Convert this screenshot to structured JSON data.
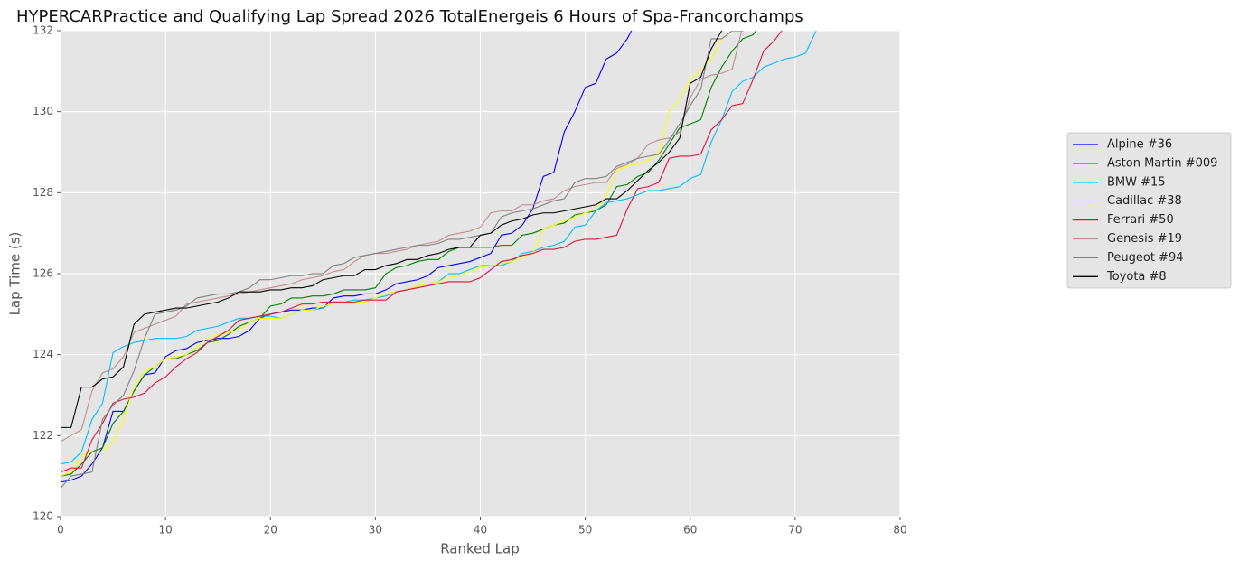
{
  "chart_data": {
    "type": "line",
    "title": "HYPERCARPractice and Qualifying Lap Spread 2026 TotalEnergeis 6 Hours of Spa-Francorchamps",
    "x_label": "Ranked Lap",
    "y_label": "Lap Time (s)",
    "xlim": [
      0,
      80
    ],
    "ylim": [
      120,
      132
    ],
    "xticks": [
      0,
      10,
      20,
      30,
      40,
      50,
      60,
      70,
      80
    ],
    "yticks": [
      120,
      122,
      124,
      126,
      128,
      130,
      132
    ],
    "grid": true,
    "x": [
      0,
      1,
      2,
      3,
      4,
      5,
      6,
      7,
      8,
      9,
      10,
      11,
      12,
      13,
      14,
      15,
      16,
      17,
      18,
      19,
      20,
      21,
      22,
      23,
      24,
      25,
      26,
      27,
      28,
      29,
      30,
      31,
      32,
      33,
      34,
      35,
      36,
      37,
      38,
      39,
      40,
      41,
      42,
      43,
      44,
      45,
      46,
      47,
      48,
      49,
      50,
      51,
      52,
      53,
      54,
      55,
      56,
      57,
      58,
      59,
      60,
      61,
      62,
      63,
      64,
      65,
      66,
      67,
      68,
      69,
      70,
      71,
      72,
      73
    ],
    "series": [
      {
        "name": "Alpine #36",
        "color": "#0000ff",
        "values": [
          120.85,
          120.9,
          121.0,
          121.3,
          121.7,
          122.6,
          122.6,
          123.1,
          123.5,
          123.55,
          123.95,
          124.1,
          124.15,
          124.3,
          124.35,
          124.4,
          124.4,
          124.45,
          124.6,
          124.9,
          125.0,
          125.05,
          125.1,
          125.1,
          125.15,
          125.15,
          125.4,
          125.45,
          125.45,
          125.5,
          125.5,
          125.6,
          125.75,
          125.8,
          125.85,
          125.95,
          126.15,
          126.2,
          126.25,
          126.3,
          126.4,
          126.5,
          126.95,
          127.0,
          127.2,
          127.6,
          128.4,
          128.5,
          129.5,
          130.0,
          130.6,
          130.7,
          131.3,
          131.45,
          131.8,
          132.3,
          null,
          null,
          null,
          null,
          null,
          null,
          null,
          null,
          null,
          null,
          null,
          null,
          null,
          null,
          null,
          null,
          null,
          null
        ]
      },
      {
        "name": "Aston Martin #009",
        "color": "#008000",
        "values": [
          121.0,
          121.05,
          121.3,
          121.6,
          121.7,
          122.3,
          122.6,
          123.1,
          123.5,
          123.7,
          123.9,
          123.9,
          124.0,
          124.1,
          124.3,
          124.35,
          124.5,
          124.7,
          124.8,
          124.9,
          125.2,
          125.25,
          125.4,
          125.4,
          125.45,
          125.45,
          125.5,
          125.6,
          125.6,
          125.6,
          125.65,
          126.0,
          126.15,
          126.2,
          126.3,
          126.35,
          126.35,
          126.55,
          126.65,
          126.65,
          126.65,
          126.65,
          126.7,
          126.7,
          126.95,
          127.0,
          127.1,
          127.2,
          127.25,
          127.45,
          127.5,
          127.55,
          127.7,
          128.15,
          128.2,
          128.4,
          128.5,
          128.8,
          129.2,
          129.6,
          129.7,
          129.8,
          130.6,
          131.1,
          131.5,
          131.8,
          131.9,
          132.3,
          null,
          null,
          null,
          null,
          null,
          null
        ]
      },
      {
        "name": "BMW #15",
        "color": "#00bfff",
        "values": [
          121.3,
          121.35,
          121.6,
          122.4,
          122.8,
          124.05,
          124.2,
          124.3,
          124.35,
          124.4,
          124.4,
          124.4,
          124.45,
          124.6,
          124.65,
          124.7,
          124.8,
          124.9,
          124.9,
          124.95,
          124.95,
          124.9,
          125.0,
          125.1,
          125.1,
          125.15,
          125.3,
          125.3,
          125.35,
          125.35,
          125.4,
          125.45,
          125.55,
          125.6,
          125.7,
          125.75,
          125.8,
          126.0,
          126.0,
          126.1,
          126.2,
          126.2,
          126.2,
          126.3,
          126.5,
          126.55,
          126.65,
          126.7,
          126.8,
          127.15,
          127.2,
          127.55,
          127.75,
          127.8,
          127.85,
          127.95,
          128.05,
          128.05,
          128.1,
          128.15,
          128.35,
          128.45,
          129.25,
          129.8,
          130.5,
          130.75,
          130.85,
          131.1,
          131.2,
          131.3,
          131.35,
          131.45,
          132.0,
          132.5
        ]
      },
      {
        "name": "Cadillac #38",
        "color": "#ffff00",
        "values": [
          121.0,
          121.1,
          121.5,
          121.6,
          121.6,
          121.85,
          122.4,
          123.2,
          123.6,
          123.7,
          123.9,
          123.95,
          124.0,
          124.2,
          124.4,
          124.5,
          124.55,
          124.6,
          124.8,
          124.9,
          124.9,
          124.9,
          125.0,
          125.1,
          125.1,
          125.2,
          125.25,
          125.3,
          125.3,
          125.3,
          125.4,
          125.5,
          125.55,
          125.6,
          125.7,
          125.75,
          125.8,
          125.9,
          125.95,
          126.05,
          126.15,
          126.2,
          126.25,
          126.3,
          126.4,
          126.5,
          127.1,
          127.2,
          127.3,
          127.4,
          127.5,
          127.6,
          127.9,
          128.55,
          128.65,
          128.7,
          128.8,
          129.0,
          130.0,
          130.3,
          130.8,
          131.0,
          131.3,
          131.8,
          132.0,
          132.3,
          null,
          null,
          null,
          null,
          null,
          null,
          null,
          null
        ]
      },
      {
        "name": "Ferrari #50",
        "color": "#dc143c",
        "values": [
          121.1,
          121.2,
          121.2,
          121.9,
          122.3,
          122.8,
          122.9,
          122.95,
          123.05,
          123.3,
          123.45,
          123.7,
          123.9,
          124.05,
          124.3,
          124.45,
          124.6,
          124.85,
          124.9,
          124.95,
          125.0,
          125.05,
          125.15,
          125.25,
          125.25,
          125.3,
          125.3,
          125.3,
          125.3,
          125.35,
          125.35,
          125.35,
          125.55,
          125.6,
          125.65,
          125.7,
          125.75,
          125.8,
          125.8,
          125.8,
          125.9,
          126.1,
          126.3,
          126.35,
          126.45,
          126.5,
          126.6,
          126.6,
          126.65,
          126.8,
          126.85,
          126.85,
          126.9,
          126.95,
          127.6,
          128.1,
          128.15,
          128.25,
          128.85,
          128.9,
          128.9,
          128.95,
          129.55,
          129.8,
          130.15,
          130.2,
          130.8,
          131.5,
          131.75,
          132.1,
          null,
          null,
          null,
          null
        ]
      },
      {
        "name": "Genesis #19",
        "color": "#bc8f8f",
        "values": [
          121.85,
          122.0,
          122.15,
          123.1,
          123.55,
          123.65,
          123.95,
          124.55,
          124.65,
          124.75,
          124.85,
          124.95,
          125.25,
          125.3,
          125.35,
          125.4,
          125.45,
          125.5,
          125.55,
          125.6,
          125.65,
          125.7,
          125.75,
          125.85,
          125.9,
          125.95,
          126.05,
          126.1,
          126.3,
          126.45,
          126.5,
          126.5,
          126.55,
          126.6,
          126.7,
          126.75,
          126.8,
          126.95,
          127.0,
          127.05,
          127.15,
          127.5,
          127.55,
          127.55,
          127.7,
          127.7,
          127.8,
          127.85,
          128.05,
          128.15,
          128.2,
          128.25,
          128.25,
          128.6,
          128.7,
          128.85,
          129.2,
          129.3,
          129.35,
          129.5,
          130.35,
          130.8,
          130.9,
          130.95,
          131.05,
          132.1,
          null,
          null,
          null,
          null,
          null,
          null,
          null,
          null
        ]
      },
      {
        "name": "Peugeot #94",
        "color": "#808080",
        "values": [
          120.7,
          121.0,
          121.05,
          121.1,
          122.4,
          122.75,
          123.0,
          123.6,
          124.4,
          125.0,
          125.05,
          125.1,
          125.2,
          125.4,
          125.45,
          125.5,
          125.5,
          125.55,
          125.65,
          125.85,
          125.85,
          125.9,
          125.95,
          125.95,
          126.0,
          126.0,
          126.2,
          126.25,
          126.4,
          126.45,
          126.5,
          126.55,
          126.6,
          126.65,
          126.7,
          126.7,
          126.75,
          126.85,
          126.85,
          126.9,
          126.95,
          127.0,
          127.4,
          127.5,
          127.55,
          127.6,
          127.7,
          127.8,
          127.85,
          128.25,
          128.35,
          128.35,
          128.4,
          128.65,
          128.75,
          128.85,
          128.9,
          128.95,
          129.3,
          129.7,
          130.15,
          130.55,
          131.8,
          131.8,
          132.0,
          132.0,
          132.3,
          null,
          null,
          null,
          null,
          null,
          null,
          null
        ]
      },
      {
        "name": "Toyota #8",
        "color": "#000000",
        "values": [
          122.2,
          122.2,
          123.2,
          123.2,
          123.4,
          123.45,
          123.7,
          124.75,
          125.0,
          125.05,
          125.1,
          125.15,
          125.15,
          125.2,
          125.25,
          125.3,
          125.4,
          125.55,
          125.55,
          125.55,
          125.6,
          125.6,
          125.65,
          125.65,
          125.7,
          125.85,
          125.9,
          125.95,
          125.95,
          126.1,
          126.1,
          126.2,
          126.25,
          126.35,
          126.35,
          126.45,
          126.5,
          126.6,
          126.65,
          126.65,
          126.95,
          127.0,
          127.2,
          127.3,
          127.35,
          127.45,
          127.5,
          127.5,
          127.55,
          127.6,
          127.65,
          127.7,
          127.85,
          127.85,
          128.05,
          128.3,
          128.55,
          128.75,
          129.0,
          129.35,
          130.7,
          130.85,
          131.55,
          132.0,
          132.3,
          null,
          null,
          null,
          null,
          null,
          null,
          null,
          null,
          null
        ]
      }
    ]
  }
}
